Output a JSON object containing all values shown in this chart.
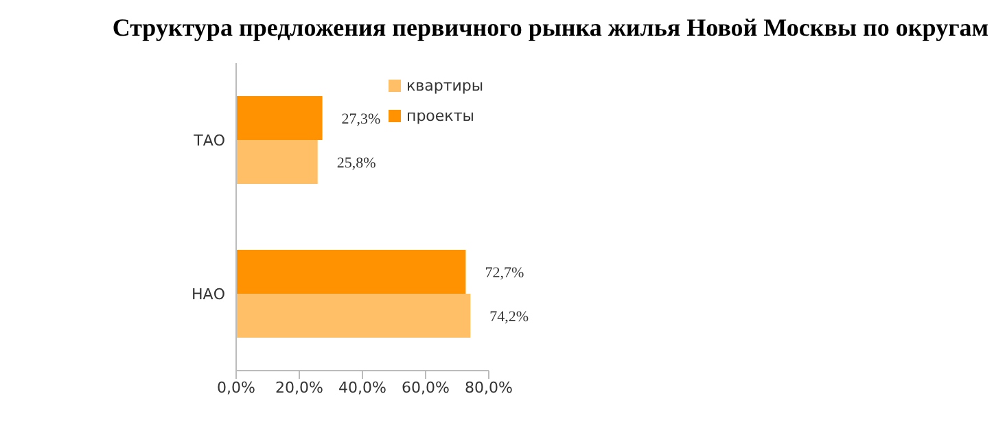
{
  "chart_data": {
    "type": "bar",
    "orientation": "horizontal",
    "title": "Структура предложения первичного рынка жилья Новой Москвы по округам",
    "categories": [
      "ТАО",
      "НАО"
    ],
    "series": [
      {
        "name": "проекты",
        "color": "#ff9200",
        "values": [
          27.3,
          72.7
        ],
        "value_labels": [
          "27,3%",
          "72,7%"
        ]
      },
      {
        "name": "квартиры",
        "color": "#ffbf66",
        "values": [
          25.8,
          74.2
        ],
        "value_labels": [
          "25,8%",
          "74,2%"
        ]
      }
    ],
    "xlim": [
      0,
      80
    ],
    "xticks": [
      {
        "value": 0,
        "label": "0,0%"
      },
      {
        "value": 20,
        "label": "20,0%"
      },
      {
        "value": 40,
        "label": "40,0%"
      },
      {
        "value": 60,
        "label": "60,0%"
      },
      {
        "value": 80,
        "label": "80,0%"
      }
    ],
    "grid": false,
    "legend": "top right"
  }
}
